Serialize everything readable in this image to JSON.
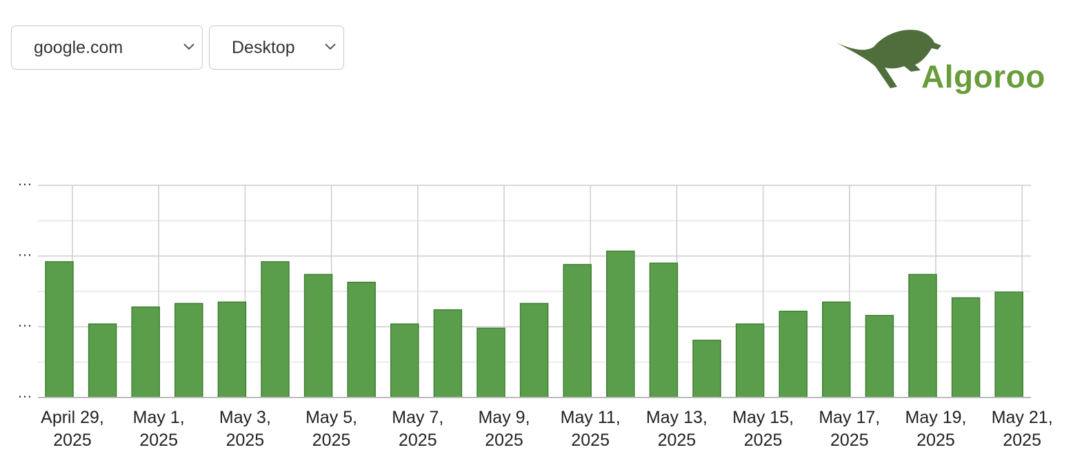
{
  "controls": {
    "domain_select": "google.com",
    "device_select": "Desktop"
  },
  "logo": {
    "text": "Algoroo"
  },
  "chart_data": {
    "type": "bar",
    "categories": [
      "April 29, 2025",
      null,
      "May 1, 2025",
      null,
      "May 3, 2025",
      null,
      "May 5, 2025",
      null,
      "May 7, 2025",
      null,
      "May 9, 2025",
      null,
      "May 11, 2025",
      null,
      "May 13, 2025",
      null,
      "May 15, 2025",
      null,
      "May 17, 2025",
      null,
      "May 19, 2025",
      null,
      "May 21, 2025"
    ],
    "values": [
      1.92,
      1.04,
      1.28,
      1.33,
      1.35,
      1.92,
      1.74,
      1.63,
      1.04,
      1.24,
      0.98,
      1.33,
      1.88,
      2.07,
      1.9,
      0.81,
      1.04,
      1.22,
      1.35,
      1.16,
      1.74,
      1.41,
      1.49
    ],
    "color": "#5a9e4b",
    "ylim": [
      0,
      3
    ],
    "yticks": [
      {
        "value": 0,
        "label": "…"
      },
      {
        "value": 1,
        "label": "…"
      },
      {
        "value": 2,
        "label": "…"
      },
      {
        "value": 3,
        "label": "…"
      }
    ],
    "minor_yticks": [
      0.5,
      1.5,
      2.5
    ],
    "grid": true
  }
}
